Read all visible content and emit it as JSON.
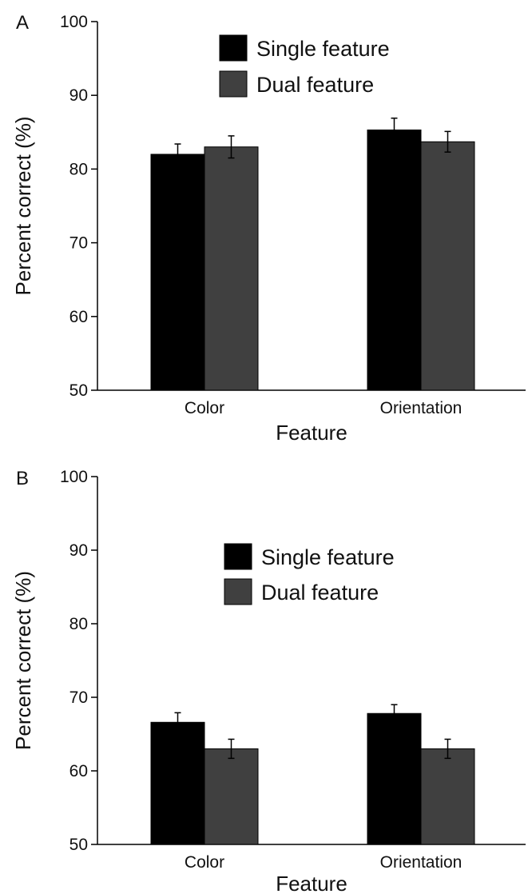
{
  "chart_data": [
    {
      "type": "bar",
      "panel": "A",
      "xlabel": "Feature",
      "ylabel": "Percent correct (%)",
      "ylim": [
        50,
        100
      ],
      "yticks": [
        50,
        60,
        70,
        80,
        90,
        100
      ],
      "categories": [
        "Color",
        "Orientation"
      ],
      "series": [
        {
          "name": "Single feature",
          "color": "#000000",
          "values": [
            82.0,
            85.3
          ],
          "errors": [
            1.4,
            1.6
          ]
        },
        {
          "name": "Dual feature",
          "color": "#404040",
          "values": [
            83.0,
            83.7
          ],
          "errors": [
            1.5,
            1.4
          ]
        }
      ],
      "legend": "top-center"
    },
    {
      "type": "bar",
      "panel": "B",
      "xlabel": "Feature",
      "ylabel": "Percent correct (%)",
      "ylim": [
        50,
        100
      ],
      "yticks": [
        50,
        60,
        70,
        80,
        90,
        100
      ],
      "categories": [
        "Color",
        "Orientation"
      ],
      "series": [
        {
          "name": "Single feature",
          "color": "#000000",
          "values": [
            66.6,
            67.8
          ],
          "errors": [
            1.3,
            1.2
          ]
        },
        {
          "name": "Dual feature",
          "color": "#404040",
          "values": [
            63.0,
            63.0
          ],
          "errors": [
            1.3,
            1.3
          ]
        }
      ],
      "legend": "top-center"
    }
  ]
}
